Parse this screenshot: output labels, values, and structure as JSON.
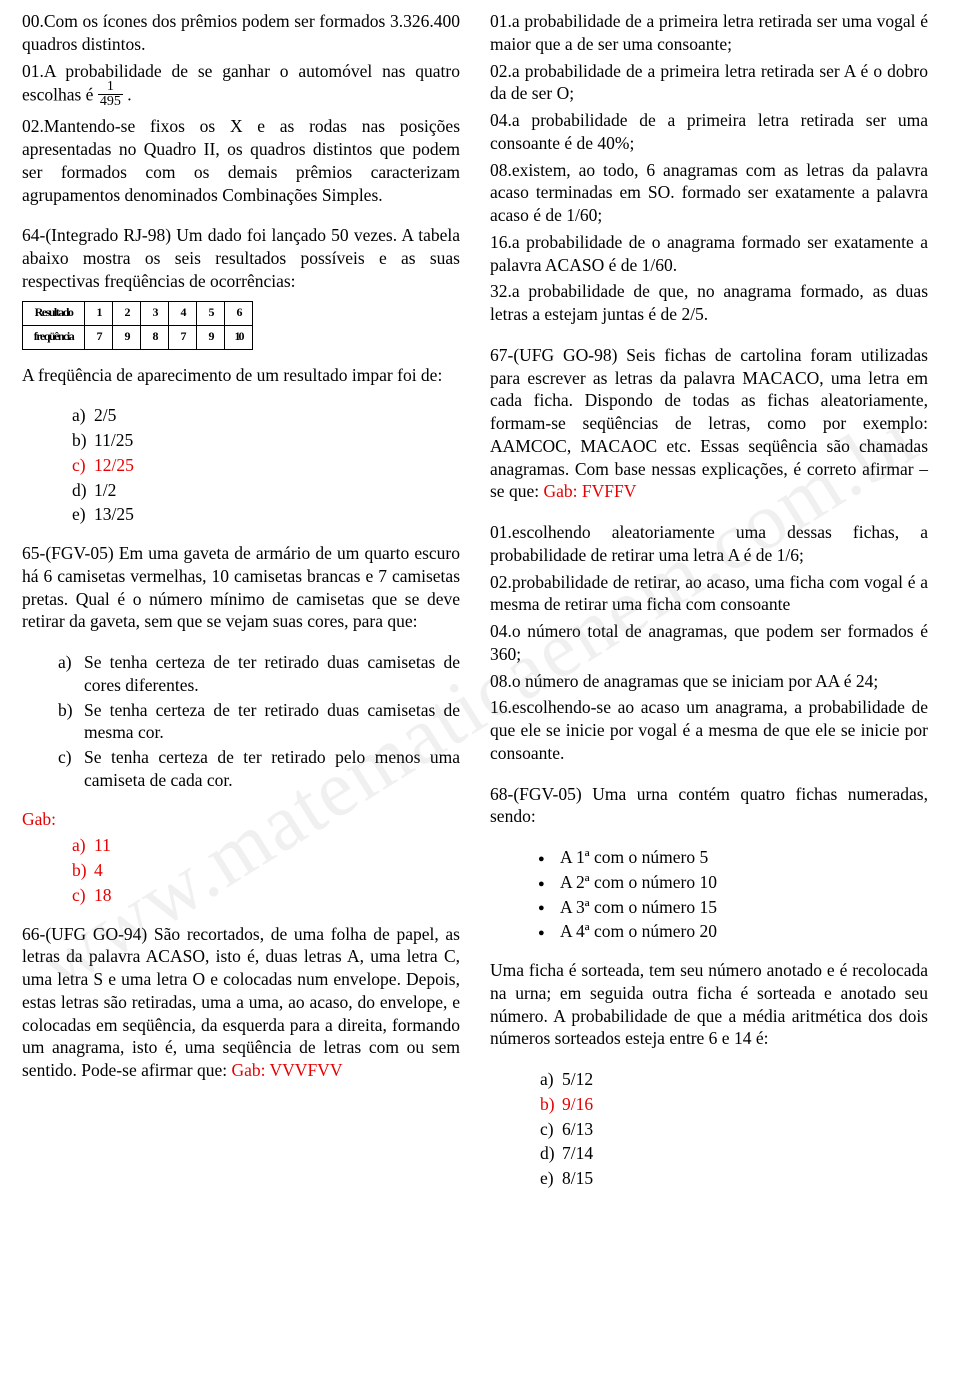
{
  "watermark_text": "www.matematicaenem.com.br",
  "left": {
    "p1_a": "00.Com os ícones dos prêmios podem ser formados 3.326.400 quadros distintos.",
    "p1_b_pre": "01.A probabilidade de se ganhar o automóvel nas quatro escolhas é ",
    "frac_num": "1",
    "frac_den": "495",
    "p1_b_post": " .",
    "p1_c": "02.Mantendo-se fixos os X e as rodas nas posições apresentadas no Quadro II, os quadros distintos que podem ser formados com os demais prêmios caracterizam agrupamentos denominados Combinações Simples.",
    "q64": "64-(Integrado RJ-98) Um dado foi lançado 50 vezes. A tabela abaixo mostra os seis resultados possíveis e as suas respectivas freqüências de ocorrências:",
    "tbl_r1": [
      "Resultado",
      "1",
      "2",
      "3",
      "4",
      "5",
      "6"
    ],
    "tbl_r2": [
      "freqüência",
      "7",
      "9",
      "8",
      "7",
      "9",
      "10"
    ],
    "q64_q": "A freqüência de aparecimento de um resultado impar foi de:",
    "q64_opts": [
      {
        "i": "a)",
        "t": "2/5",
        "red": false
      },
      {
        "i": "b)",
        "t": "11/25",
        "red": false
      },
      {
        "i": "c)",
        "t": "12/25",
        "red": true
      },
      {
        "i": "d)",
        "t": "1/2",
        "red": false
      },
      {
        "i": "e)",
        "t": "13/25",
        "red": false
      }
    ],
    "q65": "65-(FGV-05) Em uma gaveta de armário de um quarto escuro há 6 camisetas vermelhas, 10 camisetas brancas e 7 camisetas pretas. Qual é o número mínimo de camisetas que se deve retirar da gaveta, sem que se vejam suas cores, para que:",
    "q65_sub": [
      {
        "i": "a)",
        "t": "Se tenha certeza de ter retirado duas camisetas de cores diferentes."
      },
      {
        "i": "b)",
        "t": "Se tenha certeza de ter retirado duas camisetas de mesma cor."
      },
      {
        "i": "c)",
        "t": "Se tenha certeza de ter retirado pelo menos uma camiseta de cada cor."
      }
    ],
    "gab_label": "Gab:",
    "q65_gab": [
      {
        "i": "a)",
        "t": "11"
      },
      {
        "i": "b)",
        "t": "4"
      },
      {
        "i": "c)",
        "t": "18"
      }
    ],
    "q66_pre": "66-(UFG GO-94) São recortados, de uma folha de papel, as letras da palavra ACASO, isto é, duas letras A, uma letra C, uma letra S e uma letra O e colocadas num envelope. Depois, estas letras são retiradas, uma a uma, ao acaso, do envelope, e colocadas em seqüência, da esquerda para a direita, formando um anagrama, isto é, uma seqüência de letras com ou sem sentido. Pode-se afirmar que: ",
    "q66_gab": "Gab: VVVFVV"
  },
  "right": {
    "p1": "01.a probabilidade de a primeira letra retirada ser uma vogal é maior que a de ser uma consoante;",
    "p2": "02.a probabilidade de a primeira letra retirada ser A é o dobro da de ser O;",
    "p3": "04.a probabilidade de a primeira letra retirada ser uma consoante é de 40%;",
    "p4": "08.existem, ao todo, 6 anagramas com as letras da palavra acaso terminadas em SO. formado ser exatamente a palavra acaso é de 1/60;",
    "p5": "16.a probabilidade de o anagrama formado ser exatamente a palavra ACASO é de 1/60.",
    "p6": "32.a probabilidade de que, no anagrama formado, as duas letras a estejam juntas é de 2/5.",
    "q67_pre": "67-(UFG GO-98) Seis fichas de cartolina foram utilizadas para escrever as letras da palavra MACACO, uma letra em cada ficha. Dispondo de todas as fichas aleatoriamente, formam-se seqüências de letras, como por exemplo: AAMCOC, MACAOC etc. Essas seqüência são chamadas anagramas. Com base nessas explicações, é correto afirmar –se que: ",
    "q67_gab": "Gab: FVFFV",
    "q67_s1": "01.escolhendo aleatoriamente uma dessas fichas, a probabilidade de retirar uma letra A é de 1/6;",
    "q67_s2": "02.probabilidade de retirar, ao acaso, uma ficha com vogal é a mesma de retirar uma ficha com consoante",
    "q67_s3": "04.o número total de anagramas, que podem ser formados é 360;",
    "q67_s4": "08.o número de anagramas que se iniciam por AA é 24;",
    "q67_s5": "16.escolhendo-se ao acaso um anagrama, a probabilidade de que ele se inicie por vogal é a mesma de que ele se inicie por consoante.",
    "q68": "68-(FGV-05) Uma urna contém quatro fichas numeradas, sendo:",
    "q68_items": [
      "A 1ª com o número 5",
      "A 2ª com o número 10",
      "A 3ª com o número 15",
      "A 4ª com o número 20"
    ],
    "q68_q": "Uma ficha é sorteada, tem seu número anotado e é recolocada na urna; em seguida outra ficha é sorteada e anotado seu número. A probabilidade de que a média aritmética dos dois números sorteados esteja entre 6 e 14 é:",
    "q68_opts": [
      {
        "i": "a)",
        "t": "5/12",
        "red": false
      },
      {
        "i": "b)",
        "t": "9/16",
        "red": true
      },
      {
        "i": "c)",
        "t": "6/13",
        "red": false
      },
      {
        "i": "d)",
        "t": "7/14",
        "red": false
      },
      {
        "i": "e)",
        "t": "8/15",
        "red": false
      }
    ]
  },
  "colors": {
    "red": "#e60000",
    "black": "#000000",
    "bg": "#ffffff"
  }
}
